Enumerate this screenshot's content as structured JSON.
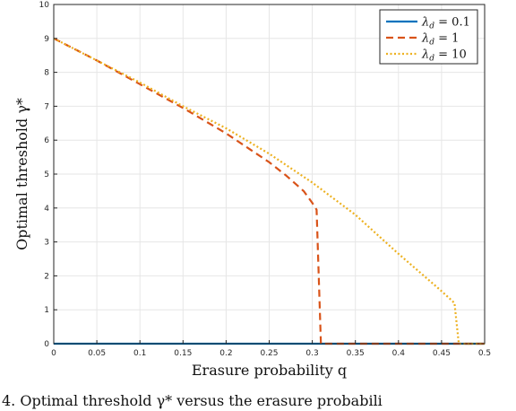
{
  "chart_data": {
    "type": "line",
    "xlabel": "Erasure probability q",
    "ylabel": "Optimal threshold γ*",
    "xlim": [
      0,
      0.5
    ],
    "ylim": [
      0,
      10
    ],
    "xticks": [
      "0",
      "0.05",
      "0.1",
      "0.15",
      "0.2",
      "0.25",
      "0.3",
      "0.35",
      "0.4",
      "0.45",
      "0.5"
    ],
    "yticks": [
      "0",
      "1",
      "2",
      "3",
      "4",
      "5",
      "6",
      "7",
      "8",
      "9",
      "10"
    ],
    "grid": true,
    "legend_position": "top-right",
    "series": [
      {
        "name": "λd = 0.1",
        "color": "#0072BD",
        "style": "solid",
        "x": [
          0,
          0.5
        ],
        "y": [
          0,
          0
        ]
      },
      {
        "name": "λd = 1",
        "color": "#D95319",
        "style": "dashed",
        "x": [
          0,
          0.05,
          0.1,
          0.15,
          0.2,
          0.25,
          0.27,
          0.29,
          0.3,
          0.305,
          0.31,
          0.315,
          0.35,
          0.4,
          0.45,
          0.5
        ],
        "y": [
          9.0,
          8.35,
          7.65,
          6.95,
          6.2,
          5.35,
          4.95,
          4.5,
          4.15,
          3.95,
          0,
          0,
          0,
          0,
          0,
          0
        ]
      },
      {
        "name": "λd = 10",
        "color": "#EDB120",
        "style": "dotted",
        "x": [
          0,
          0.05,
          0.1,
          0.15,
          0.2,
          0.25,
          0.3,
          0.35,
          0.4,
          0.45,
          0.465,
          0.47,
          0.5
        ],
        "y": [
          9.0,
          8.35,
          7.7,
          7.0,
          6.35,
          5.6,
          4.75,
          3.8,
          2.65,
          1.55,
          1.2,
          0,
          0
        ]
      }
    ],
    "legend": [
      {
        "symbol": "λ",
        "sub": "d",
        "rest": " = 0.1"
      },
      {
        "symbol": "λ",
        "sub": "d",
        "rest": " = 1"
      },
      {
        "symbol": "λ",
        "sub": "d",
        "rest": " = 10"
      }
    ]
  },
  "caption": "4. Optimal threshold γ* versus the erasure probabili"
}
